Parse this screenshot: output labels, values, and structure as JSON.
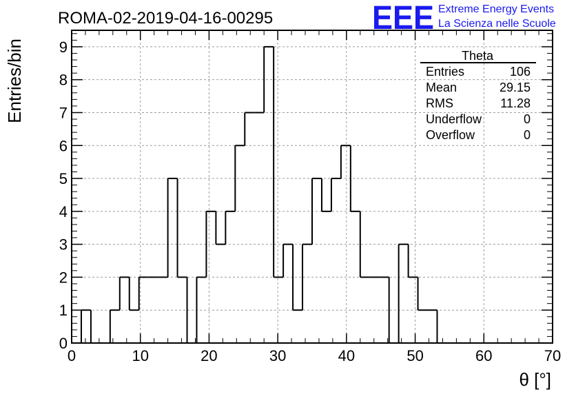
{
  "chart_data": {
    "type": "bar",
    "title": "ROMA-02-2019-04-16-00295",
    "xlabel": "θ [°]",
    "ylabel": "Entries/bin",
    "xlim": [
      0,
      70
    ],
    "ylim": [
      0,
      9.5
    ],
    "x_ticks": [
      "0",
      "10",
      "20",
      "30",
      "40",
      "50",
      "60",
      "70"
    ],
    "y_ticks": [
      "0",
      "1",
      "2",
      "3",
      "4",
      "5",
      "6",
      "7",
      "8",
      "9"
    ],
    "grid": true,
    "bin_edges": [
      1.4,
      2.8,
      4.2,
      5.6,
      7.0,
      8.4,
      9.8,
      11.2,
      12.6,
      14.0,
      15.4,
      16.8,
      18.2,
      19.6,
      21.0,
      22.4,
      23.8,
      25.2,
      26.6,
      28.0,
      29.4,
      30.8,
      32.2,
      33.6,
      35.0,
      36.4,
      37.8,
      39.2,
      40.6,
      42.0,
      43.4,
      44.8,
      46.2,
      47.6,
      49.0,
      50.4,
      51.8,
      53.2
    ],
    "values": [
      1,
      0,
      0,
      1,
      2,
      1,
      2,
      2,
      2,
      5,
      2,
      0,
      2,
      4,
      3,
      4,
      6,
      7,
      7,
      9,
      2,
      3,
      1,
      3,
      5,
      4,
      5,
      6,
      4,
      2,
      2,
      2,
      0,
      3,
      2,
      1,
      1
    ],
    "stats_box": {
      "title": "Theta",
      "rows": [
        {
          "label": "Entries",
          "value": "106"
        },
        {
          "label": "Mean",
          "value": "29.15"
        },
        {
          "label": "RMS",
          "value": "11.28"
        },
        {
          "label": "Underflow",
          "value": "0"
        },
        {
          "label": "Overflow",
          "value": "0"
        }
      ]
    }
  },
  "logo": {
    "text": "EEE",
    "line1": "Extreme Energy Events",
    "line2": "La Scienza nelle Scuole",
    "color": "#1a1aee"
  }
}
